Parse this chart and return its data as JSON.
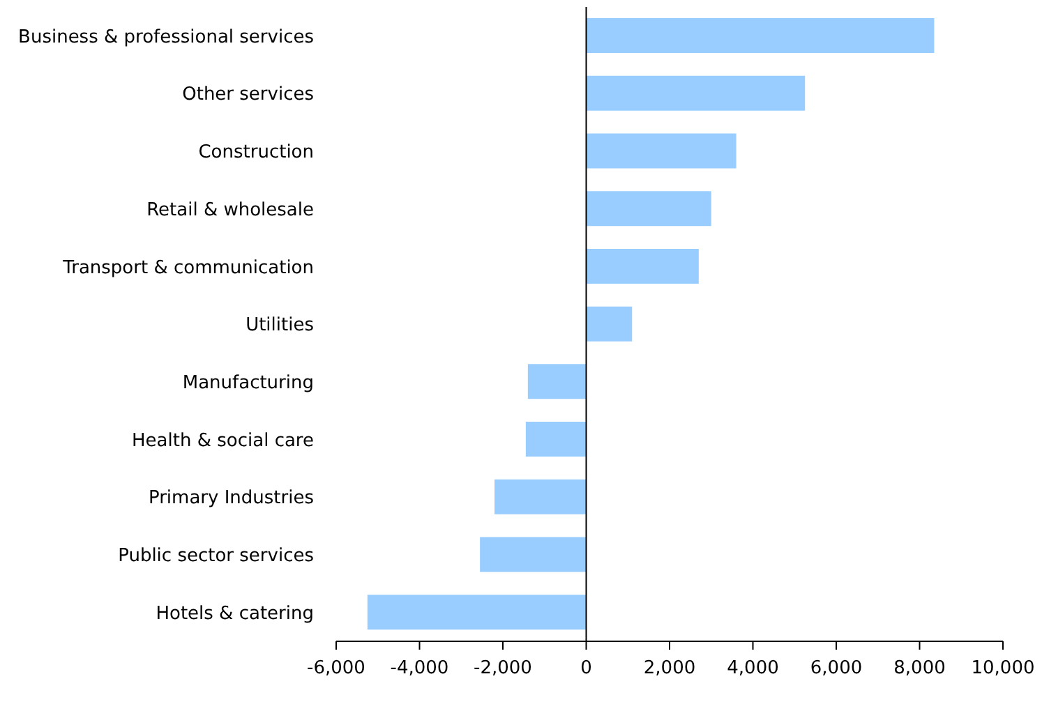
{
  "chart_data": {
    "type": "bar",
    "orientation": "horizontal",
    "categories": [
      "Business & professional services",
      "Other services",
      "Construction",
      "Retail & wholesale",
      "Transport & communication",
      "Utilities",
      "Manufacturing",
      "Health & social care",
      "Primary Industries",
      "Public sector services",
      "Hotels & catering"
    ],
    "values": [
      8350,
      5250,
      3600,
      3000,
      2700,
      1100,
      -1400,
      -1450,
      -2200,
      -2550,
      -5250
    ],
    "color": "#99ccff",
    "xlim": [
      -6000,
      10000
    ],
    "xticks": [
      {
        "value": -6000,
        "label": "-6,000"
      },
      {
        "value": -4000,
        "label": "-4,000"
      },
      {
        "value": -2000,
        "label": "-2,000"
      },
      0,
      {
        "value": 2000,
        "label": "2,000"
      },
      {
        "value": 4000,
        "label": "4,000"
      },
      {
        "value": 6000,
        "label": "6,000"
      },
      {
        "value": 8000,
        "label": "8,000"
      },
      {
        "value": 10000,
        "label": "10,000"
      }
    ],
    "ref_lines": [
      {
        "axis": "x",
        "value": 0,
        "color": "#000000"
      }
    ]
  }
}
